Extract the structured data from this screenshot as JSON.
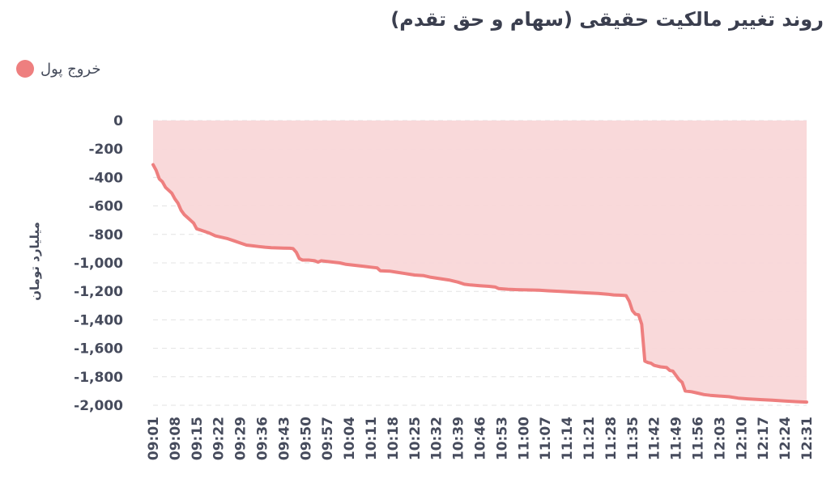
{
  "header": {
    "title": "روند تغییر مالکیت حقیقی (سهام و حق تقدم)"
  },
  "colors": {
    "series": "#ee7f7f",
    "fill": "#f9d7d8",
    "grid": "#e3e3e3",
    "text": "#464b5c"
  },
  "chart_data": {
    "type": "area",
    "title": "روند تغییر مالکیت حقیقی (سهام و حق تقدم)",
    "ylabel": "میلیارد تومان",
    "xlabel": "",
    "ylim": [
      -2000,
      0
    ],
    "yticks": [
      0,
      -200,
      -400,
      -600,
      -800,
      -1000,
      -1200,
      -1400,
      -1600,
      -1800,
      -2000
    ],
    "ytick_labels": [
      "0",
      "-200",
      "-400",
      "-600",
      "-800",
      "-1,000",
      "-1,200",
      "-1,400",
      "-1,600",
      "-1,800",
      "-2,000"
    ],
    "x_ticks": [
      "09:01",
      "09:08",
      "09:15",
      "09:22",
      "09:29",
      "09:36",
      "09:43",
      "09:50",
      "09:57",
      "10:04",
      "10:11",
      "10:18",
      "10:25",
      "10:32",
      "10:39",
      "10:46",
      "10:53",
      "11:00",
      "11:07",
      "11:14",
      "11:21",
      "11:28",
      "11:35",
      "11:42",
      "11:49",
      "11:56",
      "12:03",
      "12:10",
      "12:17",
      "12:24",
      "12:31"
    ],
    "grid": true,
    "legend": "top-left",
    "series": [
      {
        "name": "خروج پول",
        "points": [
          [
            "09:01",
            -310
          ],
          [
            "09:02",
            -350
          ],
          [
            "09:03",
            -410
          ],
          [
            "09:04",
            -430
          ],
          [
            "09:05",
            -470
          ],
          [
            "09:06",
            -490
          ],
          [
            "09:07",
            -510
          ],
          [
            "09:08",
            -550
          ],
          [
            "09:09",
            -580
          ],
          [
            "09:10",
            -630
          ],
          [
            "09:11",
            -660
          ],
          [
            "09:12",
            -680
          ],
          [
            "09:13",
            -700
          ],
          [
            "09:14",
            -720
          ],
          [
            "09:15",
            -760
          ],
          [
            "09:17",
            -775
          ],
          [
            "09:19",
            -790
          ],
          [
            "09:21",
            -810
          ],
          [
            "09:23",
            -820
          ],
          [
            "09:25",
            -830
          ],
          [
            "09:27",
            -845
          ],
          [
            "09:29",
            -860
          ],
          [
            "09:31",
            -875
          ],
          [
            "09:33",
            -880
          ],
          [
            "09:35",
            -885
          ],
          [
            "09:37",
            -890
          ],
          [
            "09:39",
            -893
          ],
          [
            "09:41",
            -895
          ],
          [
            "09:43",
            -896
          ],
          [
            "09:45",
            -897
          ],
          [
            "09:46",
            -900
          ],
          [
            "09:47",
            -925
          ],
          [
            "09:48",
            -970
          ],
          [
            "09:49",
            -980
          ],
          [
            "09:51",
            -980
          ],
          [
            "09:53",
            -985
          ],
          [
            "09:54",
            -995
          ],
          [
            "09:55",
            -985
          ],
          [
            "09:57",
            -990
          ],
          [
            "09:59",
            -995
          ],
          [
            "10:01",
            -1000
          ],
          [
            "10:03",
            -1010
          ],
          [
            "10:05",
            -1015
          ],
          [
            "10:07",
            -1020
          ],
          [
            "10:09",
            -1025
          ],
          [
            "10:11",
            -1030
          ],
          [
            "10:13",
            -1035
          ],
          [
            "10:14",
            -1055
          ],
          [
            "10:17",
            -1058
          ],
          [
            "10:19",
            -1065
          ],
          [
            "10:22",
            -1075
          ],
          [
            "10:25",
            -1085
          ],
          [
            "10:28",
            -1090
          ],
          [
            "10:30",
            -1100
          ],
          [
            "10:33",
            -1110
          ],
          [
            "10:36",
            -1120
          ],
          [
            "10:39",
            -1135
          ],
          [
            "10:41",
            -1150
          ],
          [
            "10:43",
            -1155
          ],
          [
            "10:46",
            -1160
          ],
          [
            "10:49",
            -1165
          ],
          [
            "10:51",
            -1170
          ],
          [
            "10:52",
            -1180
          ],
          [
            "10:55",
            -1185
          ],
          [
            "10:58",
            -1188
          ],
          [
            "11:01",
            -1190
          ],
          [
            "11:05",
            -1192
          ],
          [
            "11:08",
            -1196
          ],
          [
            "11:12",
            -1200
          ],
          [
            "11:16",
            -1205
          ],
          [
            "11:20",
            -1210
          ],
          [
            "11:24",
            -1215
          ],
          [
            "11:27",
            -1220
          ],
          [
            "11:29",
            -1225
          ],
          [
            "11:32",
            -1228
          ],
          [
            "11:33",
            -1230
          ],
          [
            "11:34",
            -1270
          ],
          [
            "11:35",
            -1335
          ],
          [
            "11:36",
            -1360
          ],
          [
            "11:37",
            -1365
          ],
          [
            "11:38",
            -1430
          ],
          [
            "11:39",
            -1690
          ],
          [
            "11:40",
            -1700
          ],
          [
            "11:41",
            -1705
          ],
          [
            "11:42",
            -1720
          ],
          [
            "11:44",
            -1730
          ],
          [
            "11:46",
            -1735
          ],
          [
            "11:47",
            -1755
          ],
          [
            "11:48",
            -1760
          ],
          [
            "11:49",
            -1790
          ],
          [
            "11:50",
            -1820
          ],
          [
            "11:51",
            -1840
          ],
          [
            "11:52",
            -1900
          ],
          [
            "11:54",
            -1905
          ],
          [
            "11:56",
            -1915
          ],
          [
            "11:58",
            -1925
          ],
          [
            "12:00",
            -1930
          ],
          [
            "12:03",
            -1935
          ],
          [
            "12:06",
            -1940
          ],
          [
            "12:09",
            -1950
          ],
          [
            "12:12",
            -1955
          ],
          [
            "12:16",
            -1960
          ],
          [
            "12:20",
            -1965
          ],
          [
            "12:24",
            -1970
          ],
          [
            "12:28",
            -1975
          ],
          [
            "12:31",
            -1978
          ]
        ]
      }
    ]
  }
}
